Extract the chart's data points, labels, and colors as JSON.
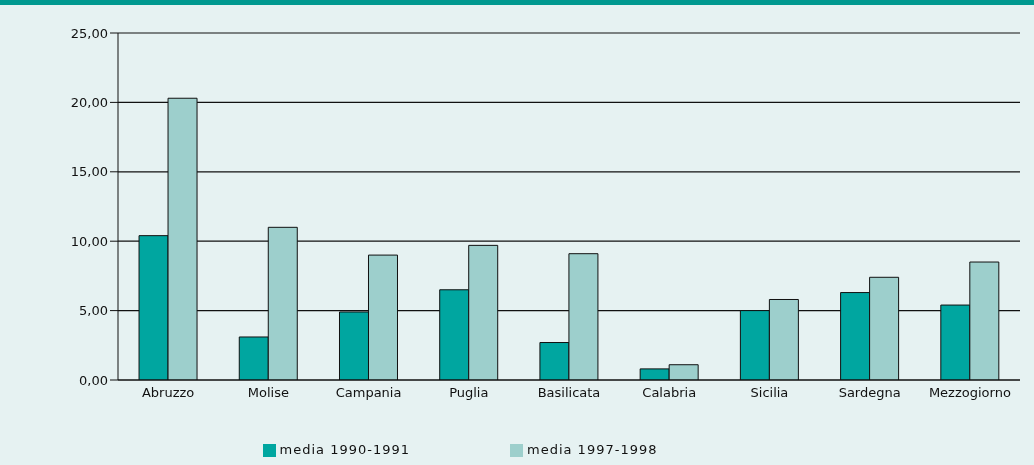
{
  "chart_data": {
    "type": "bar",
    "categories": [
      "Abruzzo",
      "Molise",
      "Campania",
      "Puglia",
      "Basilicata",
      "Calabria",
      "Sicilia",
      "Sardegna",
      "Mezzogiorno"
    ],
    "series": [
      {
        "name": "media 1990-1991",
        "color": "#00a6a0",
        "values": [
          10.4,
          3.1,
          4.9,
          6.5,
          2.7,
          0.8,
          5.0,
          6.3,
          5.4
        ]
      },
      {
        "name": "media 1997-1998",
        "color": "#9dcfcc",
        "values": [
          20.3,
          11.0,
          9.0,
          9.7,
          9.1,
          1.1,
          5.8,
          7.4,
          8.5
        ]
      }
    ],
    "ylim": [
      0,
      25
    ],
    "yticks": [
      {
        "value": 0,
        "label": "0,00"
      },
      {
        "value": 5,
        "label": "5,00"
      },
      {
        "value": 10,
        "label": "10,00"
      },
      {
        "value": 15,
        "label": "15,00"
      },
      {
        "value": 20,
        "label": "20,00"
      },
      {
        "value": 25,
        "label": "25,00"
      }
    ],
    "grid": "y",
    "legend": "bottom"
  }
}
